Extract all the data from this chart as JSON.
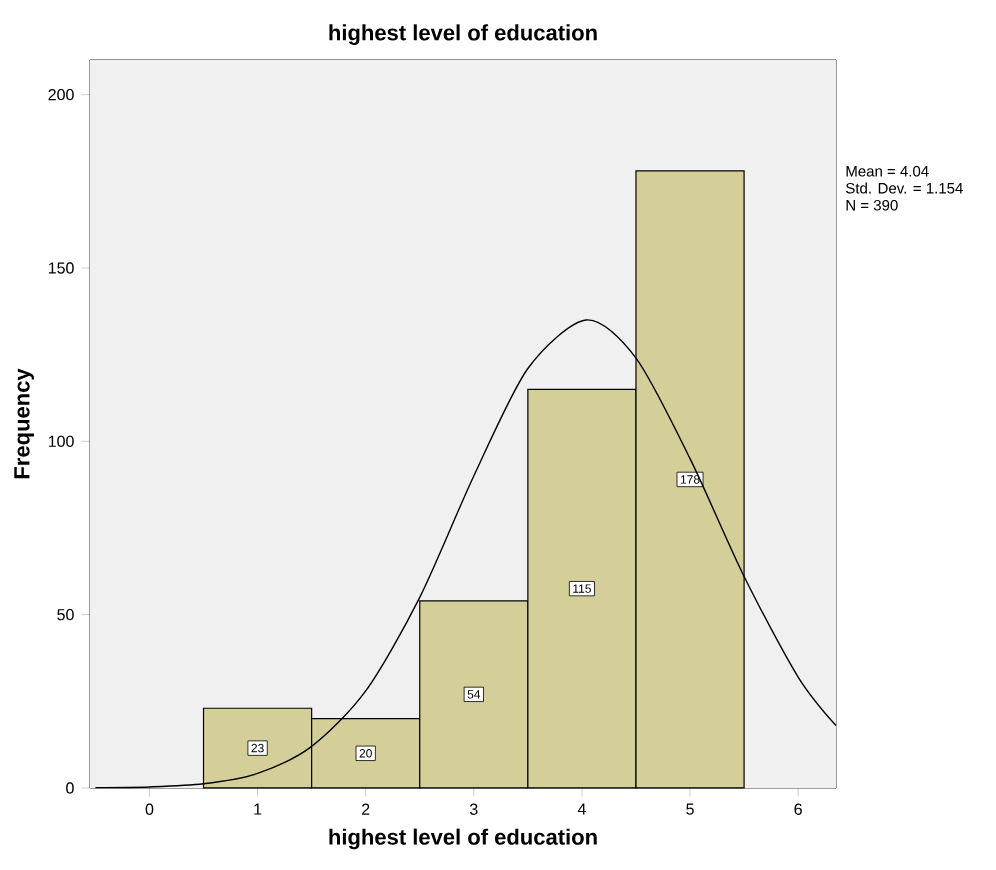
{
  "chart_data": {
    "type": "histogram",
    "title": "highest level of education",
    "xlabel": "highest level of education",
    "ylabel": "Frequency",
    "bins": [
      0.5,
      1.5,
      2.5,
      3.5,
      4.5,
      5.5
    ],
    "values": [
      23,
      20,
      54,
      115,
      178
    ],
    "color": "#d4cf98",
    "value_labels": [
      "23",
      "20",
      "54",
      "115",
      "178"
    ],
    "series": [
      {
        "type": "line",
        "color": "#000000",
        "x": [
          -0.5,
          0,
          0.5,
          1,
          1.5,
          2,
          2.5,
          3,
          3.5,
          4.04,
          4.5,
          5,
          5.5,
          6,
          6.35
        ],
        "values": [
          0.1,
          0.3,
          1.2,
          4.2,
          12,
          28,
          55,
          90,
          121,
          135,
          124,
          95,
          61,
          32,
          18
        ]
      }
    ],
    "xlim": [
      -0.55,
      6.35
    ],
    "ylim": [
      0,
      210
    ],
    "xticks": [
      0,
      1,
      2,
      3,
      4,
      5,
      6
    ],
    "yticks": [
      0,
      50,
      100,
      150,
      200
    ],
    "annotations": [
      "Mean = 4.04",
      "Std. Dev. = 1.154",
      "N = 390"
    ]
  }
}
